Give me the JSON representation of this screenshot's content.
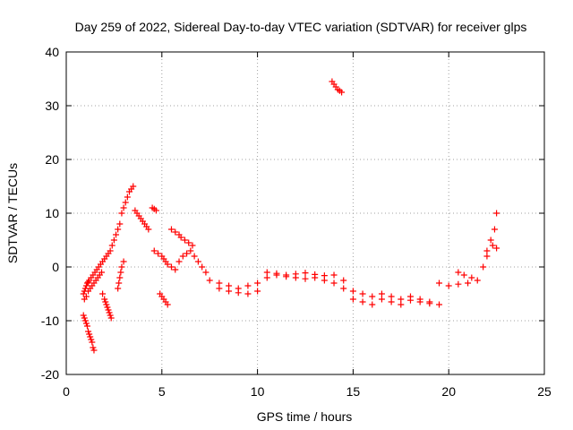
{
  "chart_data": {
    "type": "scatter",
    "title": "Day 259 of 2022, Sidereal Day-to-day VTEC variation (SDTVAR) for receiver glps",
    "xlabel": "GPS time / hours",
    "ylabel": "SDTVAR / TECUs",
    "xlim": [
      0,
      25
    ],
    "ylim": [
      -20,
      40
    ],
    "xticks": [
      0,
      5,
      10,
      15,
      20,
      25
    ],
    "yticks": [
      -20,
      -10,
      0,
      10,
      20,
      30,
      40
    ],
    "grid": true,
    "marker": "+",
    "color": "#ff0000",
    "series": [
      {
        "name": "SDTVAR",
        "x": [
          0.9,
          0.95,
          1.0,
          1.05,
          1.1,
          1.15,
          1.2,
          1.25,
          1.3,
          1.35,
          1.4,
          1.45,
          0.9,
          0.95,
          1.0,
          1.05,
          1.1,
          1.15,
          1.2,
          1.3,
          1.4,
          1.5,
          1.6,
          1.7,
          1.8,
          1.9,
          2.0,
          2.1,
          2.2,
          2.3,
          2.4,
          2.5,
          2.6,
          2.7,
          2.8,
          2.9,
          3.0,
          3.1,
          3.2,
          3.3,
          3.4,
          3.5,
          0.95,
          1.05,
          1.15,
          1.25,
          1.35,
          1.45,
          1.55,
          1.65,
          1.75,
          1.85,
          1.9,
          2.0,
          2.05,
          2.1,
          2.15,
          2.2,
          2.25,
          2.3,
          2.35,
          2.7,
          2.75,
          2.8,
          2.85,
          2.9,
          3.0,
          3.6,
          3.7,
          3.8,
          3.9,
          4.0,
          4.1,
          4.2,
          4.3,
          4.5,
          4.6,
          4.7,
          4.6,
          4.8,
          5.0,
          5.1,
          5.2,
          5.3,
          5.5,
          5.7,
          5.9,
          6.1,
          6.3,
          6.5,
          6.7,
          6.9,
          7.1,
          7.3,
          4.9,
          5.0,
          5.1,
          5.2,
          5.3,
          5.5,
          5.7,
          5.9,
          6.0,
          6.2,
          6.4,
          6.6,
          7.5,
          8.0,
          8.5,
          9.0,
          9.5,
          10.0,
          10.5,
          11.0,
          11.5,
          12.0,
          12.5,
          13.0,
          13.5,
          14.0,
          14.5,
          8.0,
          8.5,
          9.0,
          9.5,
          10.0,
          10.5,
          11.0,
          11.5,
          12.0,
          12.5,
          13.0,
          13.5,
          14.0,
          14.5,
          15.0,
          15.5,
          16.0,
          16.5,
          17.0,
          17.5,
          18.0,
          18.5,
          19.0,
          19.5,
          15.0,
          15.5,
          16.0,
          16.5,
          17.0,
          17.5,
          18.0,
          18.5,
          19.0,
          19.5,
          20.0,
          20.5,
          21.0,
          21.5,
          21.8,
          22.0,
          22.2,
          22.4,
          22.5,
          20.5,
          20.8,
          21.2,
          22.0,
          22.3,
          22.5,
          13.9,
          14.0,
          14.1,
          14.2,
          14.3,
          14.4
        ],
        "y": [
          -9,
          -9.5,
          -10,
          -10.5,
          -11,
          -12,
          -12.5,
          -13,
          -13.5,
          -14,
          -15,
          -15.5,
          -5,
          -4.5,
          -4,
          -3.5,
          -3,
          -2.8,
          -2.5,
          -2,
          -1.5,
          -1,
          -0.5,
          0,
          0.5,
          1,
          1.5,
          2,
          2.5,
          3,
          4,
          5,
          6,
          7,
          8,
          10,
          11,
          12,
          13,
          14,
          14.5,
          15,
          -6,
          -5.5,
          -4.5,
          -4,
          -3.5,
          -3,
          -2.5,
          -2,
          -1.5,
          -1,
          -5,
          -6,
          -6.5,
          -7,
          -7.5,
          -8,
          -8.5,
          -9,
          -9.5,
          -4,
          -3,
          -2,
          -1,
          0,
          1,
          10.5,
          10,
          9.5,
          9,
          8.5,
          8,
          7.5,
          7,
          11,
          10.8,
          10.5,
          3,
          2.5,
          2,
          1.5,
          1,
          0.5,
          0,
          -0.5,
          1,
          2,
          2.5,
          3,
          2,
          1,
          0,
          -1,
          -5,
          -5.5,
          -6,
          -6.5,
          -7,
          7,
          6.5,
          6,
          5.5,
          5,
          4.5,
          4,
          -2.5,
          -3,
          -3.5,
          -4,
          -3.5,
          -3,
          -2,
          -1.5,
          -1.8,
          -2,
          -2.2,
          -2,
          -2.5,
          -3,
          -2.5,
          -4,
          -4.5,
          -4.8,
          -5,
          -4.5,
          -1,
          -1.2,
          -1.5,
          -1.3,
          -1.1,
          -1.4,
          -1.6,
          -1.5,
          -4,
          -4.5,
          -5,
          -5.5,
          -5,
          -5.5,
          -6,
          -6.2,
          -6.5,
          -6.8,
          -7,
          -6,
          -6.5,
          -7,
          -6,
          -6.5,
          -7,
          -5.5,
          -6,
          -6.5,
          -3,
          -3.5,
          -3.2,
          -3,
          -2.5,
          0,
          2,
          5,
          7,
          10,
          -1,
          -1.5,
          -2,
          3,
          4,
          3.5,
          34.5,
          34,
          33.5,
          33,
          32.8,
          32.5
        ]
      }
    ]
  }
}
